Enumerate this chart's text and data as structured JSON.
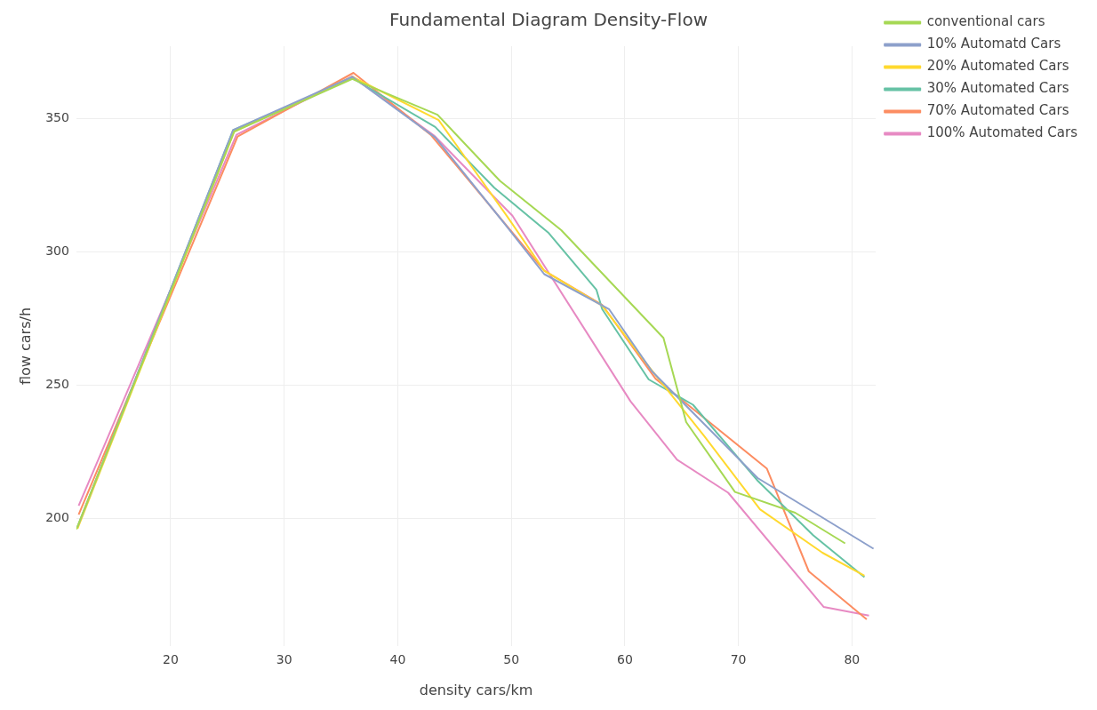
{
  "chart_data": {
    "type": "line",
    "title": "Fundamental Diagram Density-Flow",
    "xlabel": "density cars/km",
    "ylabel": "flow cars/h",
    "xlim": [
      11.7,
      82.1
    ],
    "xticks": [
      20,
      30,
      40,
      50,
      60,
      70,
      80
    ],
    "ylim": [
      152,
      377
    ],
    "yticks": [
      200,
      250,
      300,
      350
    ],
    "grid": true,
    "legend": "top right",
    "marker": "none",
    "line_style": "solid",
    "series": [
      {
        "name": "conventional cars",
        "color": "#a6d854",
        "x": [
          11.7,
          25.6,
          36,
          43.5,
          49,
          54.4,
          63.4,
          65.4,
          69.7,
          75,
          79.4
        ],
        "values": [
          195.8,
          345,
          364.7,
          351.3,
          326.5,
          308,
          267.6,
          236,
          209.8,
          202,
          190.5
        ]
      },
      {
        "name": "10% Automatd Cars",
        "color": "#8da0cb",
        "x": [
          11.8,
          25.5,
          36,
          43.3,
          49.3,
          52.9,
          58.6,
          62.4,
          71.7,
          81.9
        ],
        "values": [
          196.7,
          345.5,
          365.5,
          342.8,
          311,
          291.5,
          278.4,
          255,
          215,
          188.5
        ]
      },
      {
        "name": "20% Automated Cars",
        "color": "#ffd92f",
        "x": [
          11.8,
          25.6,
          36,
          43.6,
          49.6,
          52.9,
          58,
          62.1,
          67,
          71.9,
          77.4,
          81.1
        ],
        "values": [
          196,
          345,
          365.5,
          349.3,
          313.4,
          292.8,
          279.7,
          256.9,
          230.7,
          203.3,
          187,
          178.4
        ]
      },
      {
        "name": "30% Automated Cars",
        "color": "#66c2a5",
        "x": [
          11.8,
          25.5,
          36,
          43.3,
          48.5,
          53.3,
          57.5,
          58,
          62.1,
          66,
          71.7,
          76.6,
          81.1
        ],
        "values": [
          196.5,
          345.5,
          365,
          346.7,
          323.9,
          306.9,
          285.6,
          278.4,
          252,
          242.5,
          214,
          193.5,
          177.8
        ]
      },
      {
        "name": "70% Automated Cars",
        "color": "#fc8d62",
        "x": [
          11.9,
          25.9,
          36.1,
          42.9,
          52.9,
          58,
          62.7,
          72.5,
          76.2,
          81.3
        ],
        "values": [
          201.3,
          343.1,
          367,
          343.8,
          292.8,
          280,
          252.3,
          218.6,
          180,
          162
        ]
      },
      {
        "name": "100% Automated Cars",
        "color": "#e78ac3",
        "x": [
          11.9,
          25.8,
          36,
          43.2,
          50.1,
          60.5,
          64.6,
          69.1,
          77.5,
          81.5
        ],
        "values": [
          204.6,
          343.8,
          365.7,
          343.5,
          313.4,
          243.8,
          221.9,
          209.5,
          166.7,
          163.4
        ]
      }
    ]
  }
}
